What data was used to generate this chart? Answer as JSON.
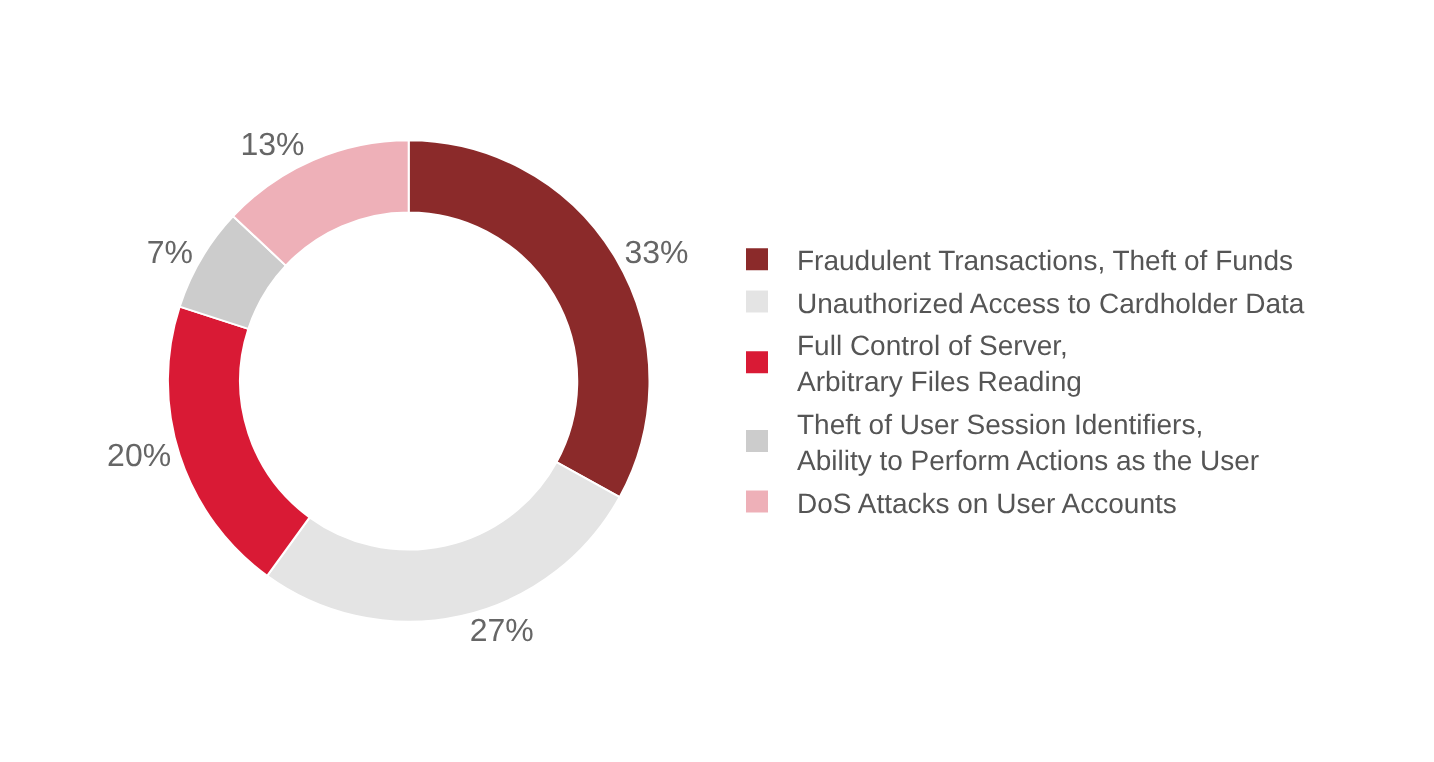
{
  "chart_data": {
    "type": "donut",
    "categories": [
      "Fraudulent Transactions, Theft of Funds",
      "Unauthorized Access to Cardholder Data",
      "Full Control of Server, Arbitrary Files Reading",
      "Theft of User Session Identifiers, Ability to Perform Actions as the User",
      "DoS Attacks on User Accounts"
    ],
    "values": [
      33,
      27,
      20,
      7,
      13
    ],
    "value_labels": [
      "33%",
      "27%",
      "20%",
      "7%",
      "13%"
    ],
    "colors": [
      "#8b2a2a",
      "#e4e4e4",
      "#d91a35",
      "#cccccc",
      "#eeb0b8"
    ],
    "legend": "right"
  }
}
